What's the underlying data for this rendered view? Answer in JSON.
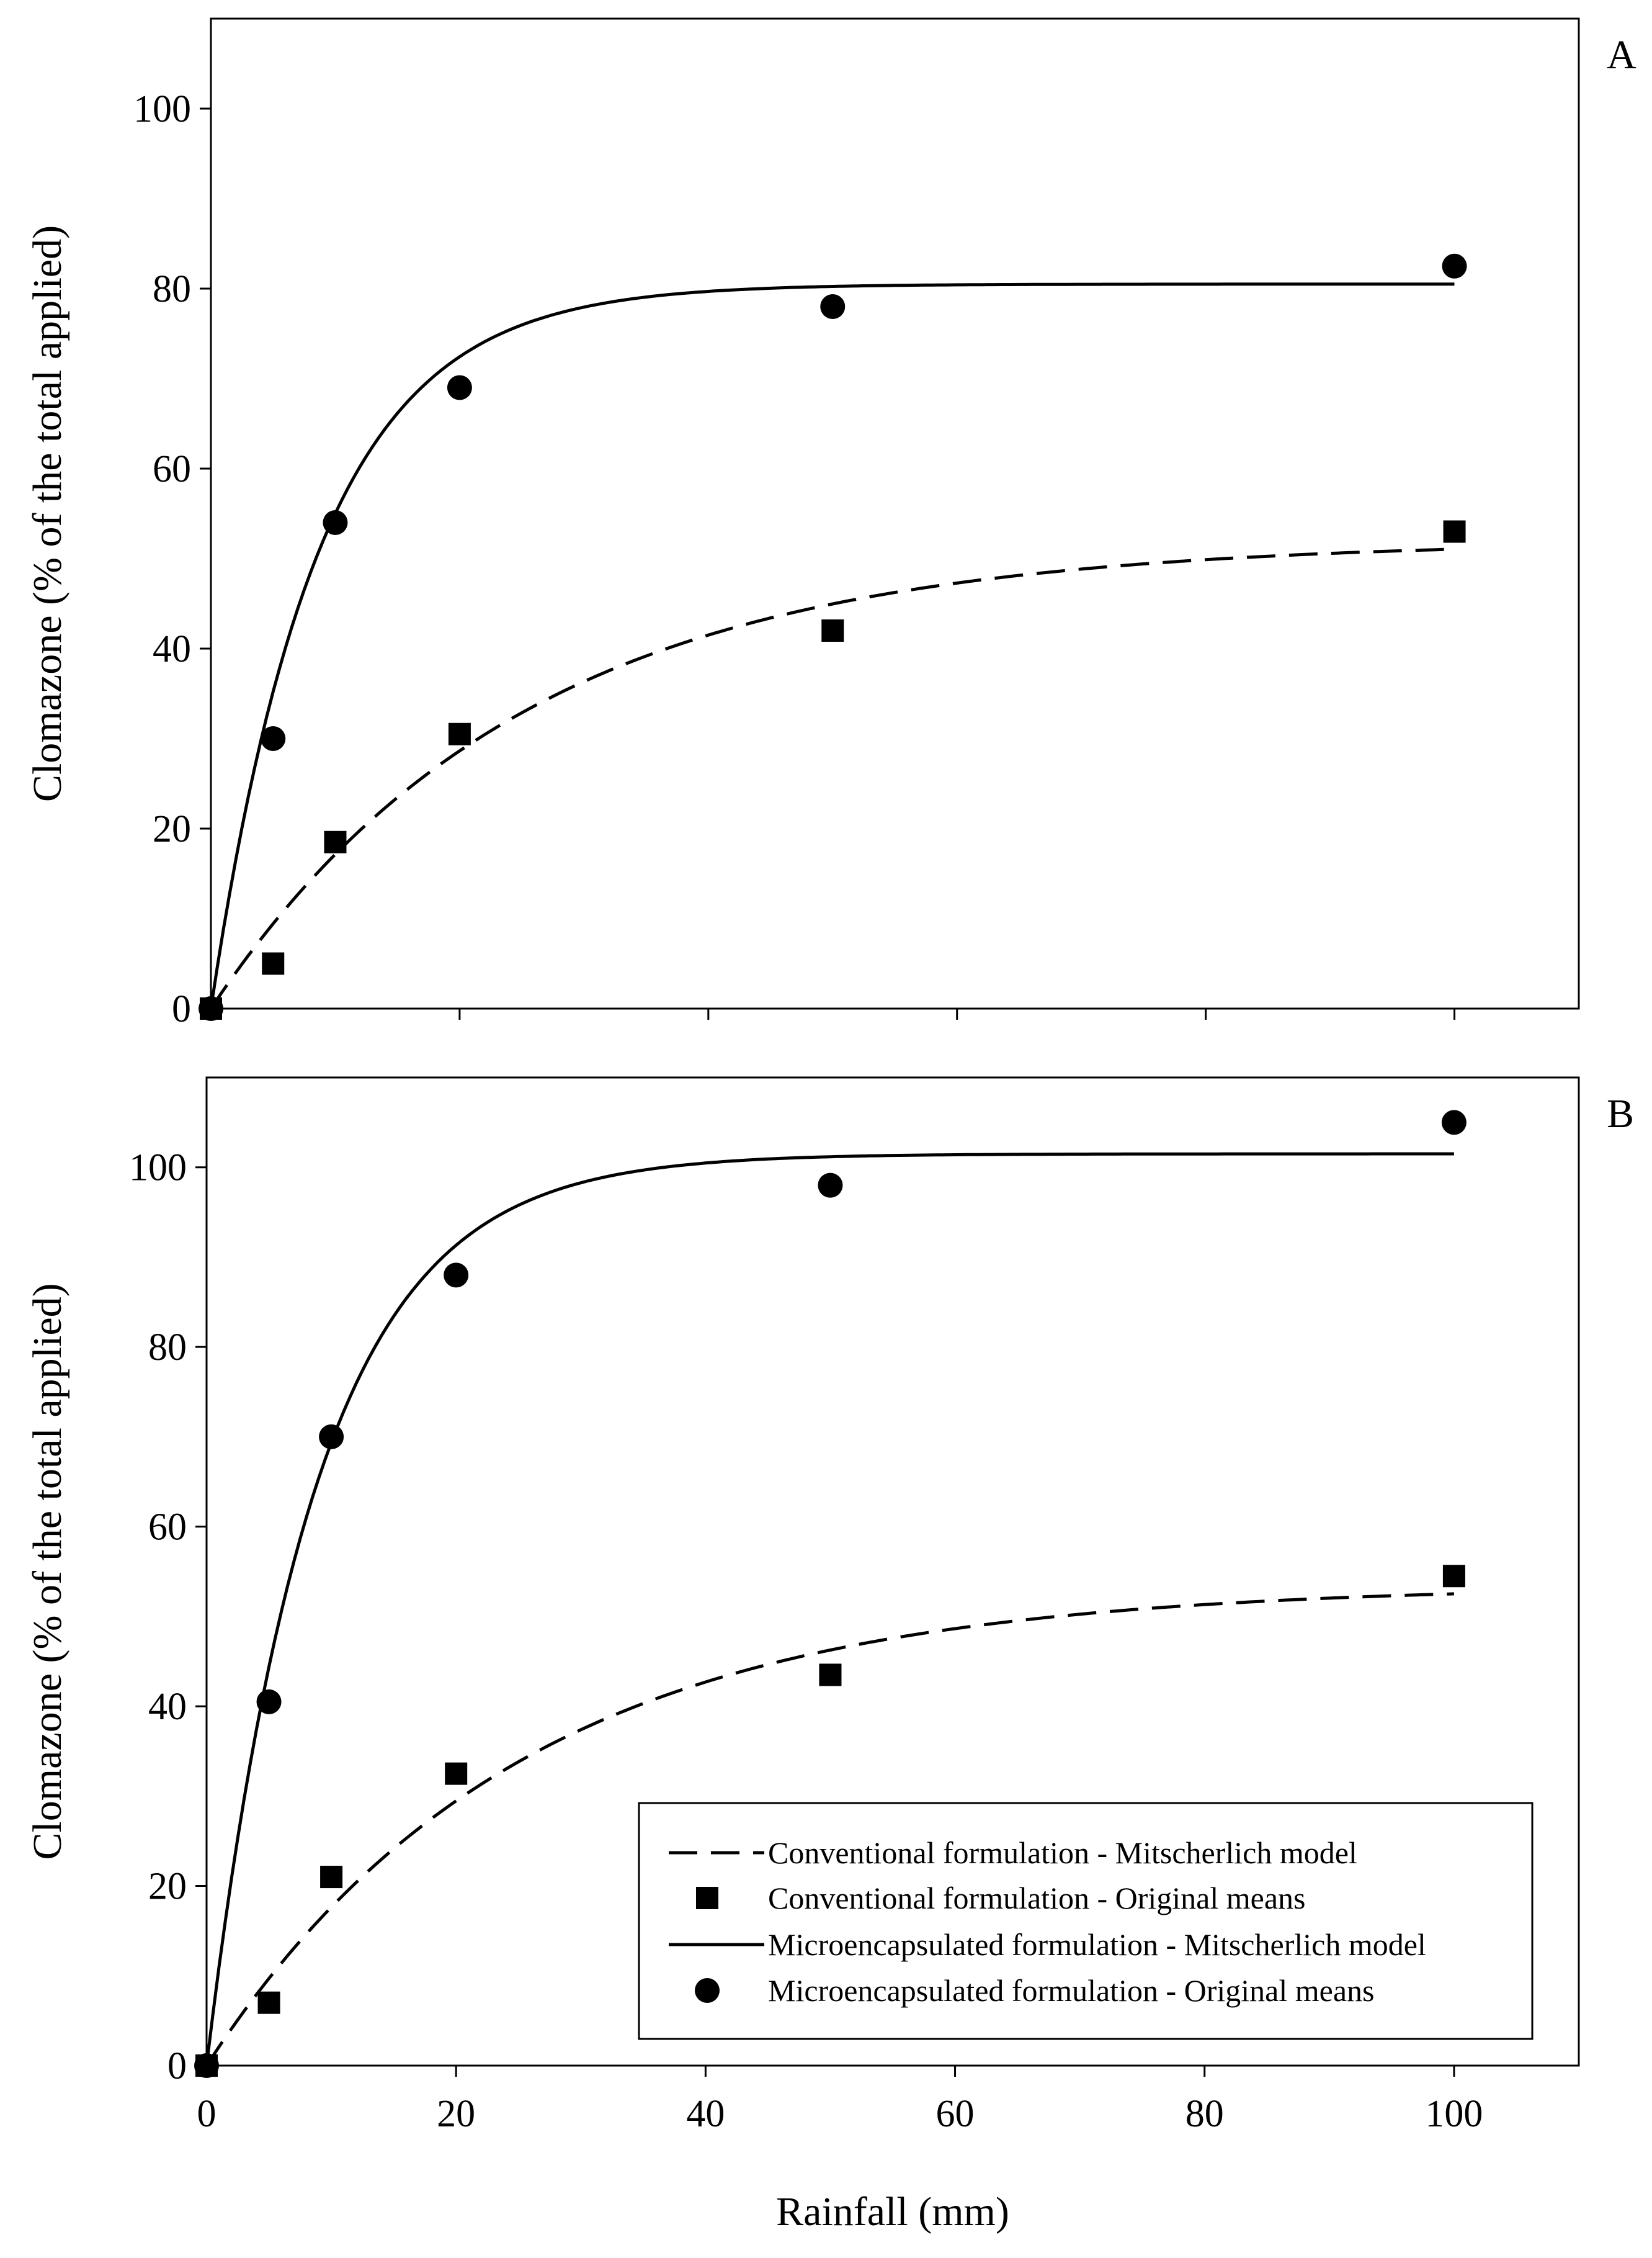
{
  "chart_data": [
    {
      "type": "scatter",
      "panel_label": "A",
      "xlim": [
        0,
        110
      ],
      "ylim": [
        0,
        110
      ],
      "x_ticks": [
        0,
        20,
        40,
        60,
        80,
        100
      ],
      "y_ticks": [
        0,
        20,
        40,
        60,
        80,
        100
      ],
      "y_tick_labels": [
        "0",
        "20",
        "40",
        "60",
        "80",
        "100"
      ],
      "x_tick_labels": [],
      "ylabel": "Clomazone (% of the total applied)",
      "xlabel": "",
      "series": [
        {
          "name": "Conventional formulation - Original means",
          "kind": "points",
          "marker": "square",
          "x": [
            0,
            5,
            10,
            20,
            50,
            100
          ],
          "y": [
            0,
            5,
            18.5,
            30.5,
            42,
            53
          ]
        },
        {
          "name": "Microencapsulated formulation - Original means",
          "kind": "points",
          "marker": "circle",
          "x": [
            0,
            5,
            10,
            20,
            50,
            100
          ],
          "y": [
            0,
            30,
            54,
            69,
            78,
            82.5
          ]
        },
        {
          "name": "Conventional formulation - Mitscherlich model",
          "kind": "curve",
          "style": "dashed",
          "model": {
            "a": 52,
            "k": 0.04,
            "x_max": 100
          }
        },
        {
          "name": "Microencapsulated formulation - Mitscherlich model",
          "kind": "curve",
          "style": "solid",
          "model": {
            "a": 80.5,
            "k": 0.115,
            "x_max": 100
          }
        }
      ]
    },
    {
      "type": "scatter",
      "panel_label": "B",
      "xlim": [
        0,
        110
      ],
      "ylim": [
        0,
        110
      ],
      "x_ticks": [
        0,
        20,
        40,
        60,
        80,
        100
      ],
      "y_ticks": [
        0,
        20,
        40,
        60,
        80,
        100
      ],
      "y_tick_labels": [
        "0",
        "20",
        "40",
        "60",
        "80",
        "100"
      ],
      "x_tick_labels": [
        "0",
        "20",
        "40",
        "60",
        "80",
        "100"
      ],
      "ylabel": "Clomazone (% of the total applied)",
      "xlabel": "Rainfall (mm)",
      "legend_position": "bottom-right",
      "series": [
        {
          "name": "Conventional formulation - Original means",
          "kind": "points",
          "marker": "square",
          "x": [
            0,
            5,
            10,
            20,
            50,
            100
          ],
          "y": [
            0,
            7,
            21,
            32.5,
            43.5,
            54.5
          ]
        },
        {
          "name": "Microencapsulated formulation - Original means",
          "kind": "points",
          "marker": "circle",
          "x": [
            0,
            5,
            10,
            20,
            50,
            100
          ],
          "y": [
            0,
            40.5,
            70,
            88,
            98,
            105
          ]
        },
        {
          "name": "Conventional formulation - Mitscherlich model",
          "kind": "curve",
          "style": "dashed",
          "model": {
            "a": 53.5,
            "k": 0.04,
            "x_max": 100
          }
        },
        {
          "name": "Microencapsulated formulation - Mitscherlich model",
          "kind": "curve",
          "style": "solid",
          "model": {
            "a": 101.5,
            "k": 0.115,
            "x_max": 100
          }
        }
      ],
      "legend": [
        {
          "marker": "dashed-line",
          "label": "Conventional formulation - Mitscherlich model"
        },
        {
          "marker": "square",
          "label": "Conventional formulation - Original means"
        },
        {
          "marker": "solid-line",
          "label": "Microencapsulated formulation - Mitscherlich model"
        },
        {
          "marker": "circle",
          "label": "Microencapsulated formulation - Original means"
        }
      ]
    }
  ]
}
